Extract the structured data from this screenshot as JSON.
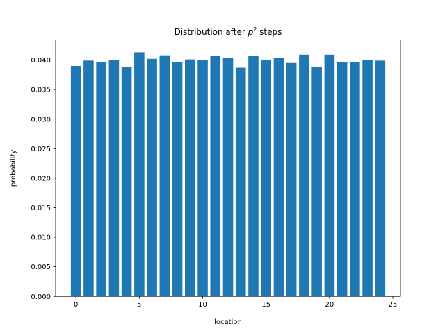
{
  "chart_data": {
    "type": "bar",
    "title": {
      "prefix": "Distribution after ",
      "var": "p",
      "sup": "2",
      "suffix": " steps"
    },
    "xlabel": "location",
    "ylabel": "probability",
    "categories": [
      0,
      1,
      2,
      3,
      4,
      5,
      6,
      7,
      8,
      9,
      10,
      11,
      12,
      13,
      14,
      15,
      16,
      17,
      18,
      19,
      20,
      21,
      22,
      23,
      24
    ],
    "values": [
      0.039,
      0.0399,
      0.0397,
      0.04,
      0.0388,
      0.0413,
      0.0402,
      0.0408,
      0.0397,
      0.0401,
      0.04,
      0.0407,
      0.0403,
      0.0387,
      0.0407,
      0.04,
      0.0403,
      0.0395,
      0.0409,
      0.0388,
      0.0409,
      0.0397,
      0.0396,
      0.04,
      0.0399
    ],
    "xlim": [
      -1.6,
      25.6
    ],
    "ylim": [
      0,
      0.04339
    ],
    "xticks": [
      "0",
      "5",
      "10",
      "15",
      "20",
      "25"
    ],
    "yticks": [
      "0.000",
      "0.005",
      "0.010",
      "0.015",
      "0.020",
      "0.025",
      "0.030",
      "0.035",
      "0.040"
    ],
    "bar_color": "#1f77b4",
    "grid": false,
    "legend": "none"
  }
}
